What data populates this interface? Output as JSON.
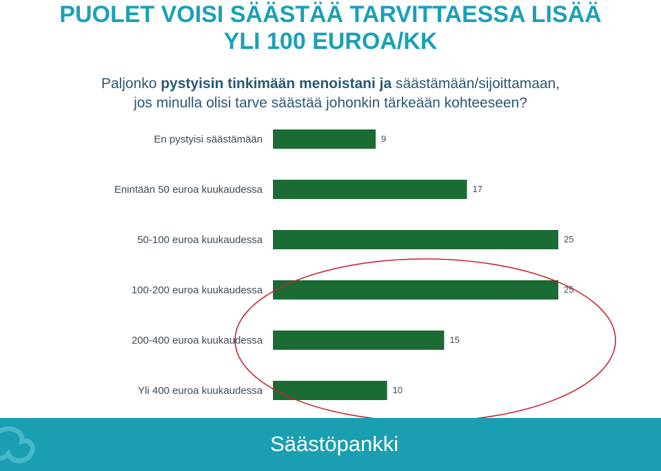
{
  "header": {
    "title_line1": "PUOLET VOISI SÄÄSTÄÄ  TARVITTAESSA LISÄÄ",
    "title_line2": "YLI 100 EUROA/KK",
    "question_line1_a": "Paljonko ",
    "question_line1_b": "pystyisin tinkimään menoistani ja",
    "question_line1_c": " säästämään/sijoittamaan,",
    "question_line2": "jos minulla olisi tarve säästää johonkin tärkeään kohteeseen?"
  },
  "chart_data": {
    "type": "bar",
    "orientation": "horizontal",
    "categories": [
      "En pystyisi säästämään",
      "Enintään 50 euroa kuukaudessa",
      "50-100 euroa kuukaudessa",
      "100-200 euroa kuukaudessa",
      "200-400 euroa kuukaudessa",
      "Yli 400 euroa kuukaudessa"
    ],
    "values": [
      9,
      17,
      25,
      25,
      15,
      10
    ],
    "xlim": [
      0,
      25
    ],
    "bar_color": "#1b6b35",
    "annotation": "red ellipse highlighting the 100-200, 200-400 and Yli 400 bars",
    "annotation_color": "#c8232c",
    "grid": false,
    "legend": "none"
  },
  "footer": {
    "brand": "Säästöpankki",
    "background": "#1a9fb2",
    "logo_icon": "saastopankki-logo-icon"
  }
}
